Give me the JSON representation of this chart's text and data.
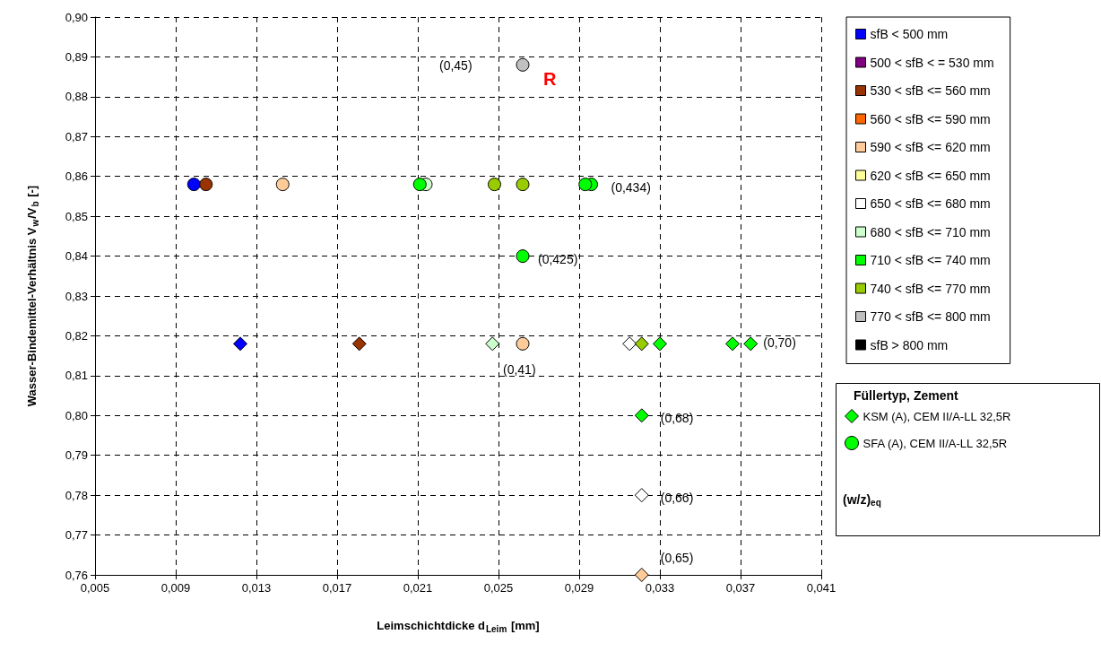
{
  "chart_data": {
    "type": "scatter",
    "xlabel": "Leimschichtdicke d$_{Leim}$ [mm]",
    "ylabel": "Wasser-Bindemittel-Verhältnis V$_{w}$/V$_{b}$ [-]",
    "legend_title": "Füllertyp, Zement",
    "xlim": [
      0.005,
      0.041
    ],
    "xticks": [
      {
        "value": 0.005,
        "label": "0,005"
      },
      {
        "value": 0.009,
        "label": "0,009"
      },
      {
        "value": 0.013,
        "label": "0,013"
      },
      {
        "value": 0.017,
        "label": "0,017"
      },
      {
        "value": 0.021,
        "label": "0,021"
      },
      {
        "value": 0.025,
        "label": "0,025"
      },
      {
        "value": 0.029,
        "label": "0,029"
      },
      {
        "value": 0.033,
        "label": "0,033"
      },
      {
        "value": 0.037,
        "label": "0,037"
      },
      {
        "value": 0.041,
        "label": "0,041"
      }
    ],
    "ylim": [
      0.76,
      0.9
    ],
    "yticks": [
      {
        "value": 0.76,
        "label": "0,76"
      },
      {
        "value": 0.77,
        "label": "0,77"
      },
      {
        "value": 0.78,
        "label": "0,78"
      },
      {
        "value": 0.79,
        "label": "0,79"
      },
      {
        "value": 0.8,
        "label": "0,80"
      },
      {
        "value": 0.81,
        "label": "0,81"
      },
      {
        "value": 0.82,
        "label": "0,82"
      },
      {
        "value": 0.83,
        "label": "0,83"
      },
      {
        "value": 0.84,
        "label": "0,84"
      },
      {
        "value": 0.85,
        "label": "0,85"
      },
      {
        "value": 0.86,
        "label": "0,86"
      },
      {
        "value": 0.87,
        "label": "0,87"
      },
      {
        "value": 0.88,
        "label": "0,88"
      },
      {
        "value": 0.89,
        "label": "0,89"
      },
      {
        "value": 0.9,
        "label": "0,90"
      }
    ],
    "grid": true,
    "legend": "right",
    "series": [
      {
        "color": "#ccffcc",
        "marker": "circle",
        "x": [
          0.0214
        ],
        "values": [
          0.858
        ]
      },
      {
        "color": "#0000ff",
        "marker": "circle",
        "x": [
          0.0099
        ],
        "values": [
          0.858
        ]
      },
      {
        "color": "#0000ff",
        "marker": "diamond",
        "x": [
          0.0122
        ],
        "values": [
          0.818
        ]
      },
      {
        "color": "#993300",
        "marker": "circle",
        "x": [
          0.0105
        ],
        "values": [
          0.858
        ]
      },
      {
        "color": "#993300",
        "marker": "diamond",
        "x": [
          0.0181
        ],
        "values": [
          0.818
        ]
      },
      {
        "color": "#ffcc99",
        "marker": "circle",
        "x": [
          0.0143,
          0.0262
        ],
        "values": [
          0.858,
          0.818
        ]
      },
      {
        "color": "#ffcc99",
        "marker": "diamond",
        "x": [
          0.0321
        ],
        "values": [
          0.76
        ]
      },
      {
        "color": "#ffffff",
        "marker": "diamond",
        "x": [
          0.0315,
          0.0321
        ],
        "values": [
          0.818,
          0.78
        ]
      },
      {
        "color": "#ccffcc",
        "marker": "diamond",
        "x": [
          0.0247
        ],
        "values": [
          0.818
        ]
      },
      {
        "color": "#00ff00",
        "marker": "circle",
        "x": [
          0.0211,
          0.0296,
          0.0293,
          0.0262
        ],
        "values": [
          0.858,
          0.858,
          0.858,
          0.84
        ]
      },
      {
        "color": "#00ff00",
        "marker": "diamond",
        "x": [
          0.033,
          0.0366,
          0.0375,
          0.0321
        ],
        "values": [
          0.818,
          0.818,
          0.818,
          0.8
        ]
      },
      {
        "color": "#99cc00",
        "marker": "circle",
        "x": [
          0.0248,
          0.0262
        ],
        "values": [
          0.858,
          0.858
        ]
      },
      {
        "color": "#99cc00",
        "marker": "diamond",
        "x": [
          0.0321
        ],
        "values": [
          0.818
        ]
      },
      {
        "color": "#c0c0c0",
        "marker": "circle",
        "x": [
          0.0262
        ],
        "values": [
          0.888
        ]
      },
      {
        "name": "sfB < 500 mm",
        "color": "#0000ff",
        "marker": "square"
      },
      {
        "name": "500 < sfB < = 530 mm",
        "color": "#800080",
        "marker": "square"
      },
      {
        "name": "530 < sfB <= 560 mm",
        "color": "#993300",
        "marker": "square"
      },
      {
        "name": "560 < sfB <= 590 mm",
        "color": "#ff6600",
        "marker": "square"
      },
      {
        "name": "590 < sfB <= 620 mm",
        "color": "#ffcc99",
        "marker": "square"
      },
      {
        "name": "620 < sfB <= 650 mm",
        "color": "#ffff99",
        "marker": "square"
      },
      {
        "name": "650 < sfB <= 680 mm",
        "color": "#ffffff",
        "marker": "square"
      },
      {
        "name": "680 < sfB <= 710 mm",
        "color": "#ccffcc",
        "marker": "square"
      },
      {
        "name": "710 < sfB <= 740 mm",
        "color": "#00ff00",
        "marker": "square"
      },
      {
        "name": "740 < sfB <= 770 mm",
        "color": "#99cc00",
        "marker": "square"
      },
      {
        "name": "770 < sfB <= 800 mm",
        "color": "#c0c0c0",
        "marker": "square"
      },
      {
        "name": "sfB > 800 mm",
        "color": "#000000",
        "marker": "square"
      },
      {
        "name": "KSM (A), CEM II/A-LL 32,5R",
        "color": "#00ff00",
        "marker": "diamond"
      },
      {
        "name": "SFA (A), CEM II/A-LL 32,5R",
        "color": "#00ff00",
        "marker": "circle"
      }
    ],
    "annotations": [
      "(0,45)",
      "R",
      {
        "text": "(0,434)",
        "x": 0.0296,
        "y": 0.858
      },
      {
        "text": "(0,425)",
        "x": 0.0262,
        "y": 0.84
      },
      {
        "text": "(0,41)",
        "x": 0.0262,
        "y": 0.818
      },
      {
        "text": "(0,70)",
        "x": 0.0375,
        "y": 0.818
      },
      {
        "text": "(0,68)",
        "x": 0.0321,
        "y": 0.8
      },
      {
        "text": "(0,66)",
        "x": 0.0321,
        "y": 0.78
      },
      {
        "text": "(0,65)",
        "x": 0.0321,
        "y": 0.76
      },
      "(w/z)$_{eq}$"
    ]
  }
}
